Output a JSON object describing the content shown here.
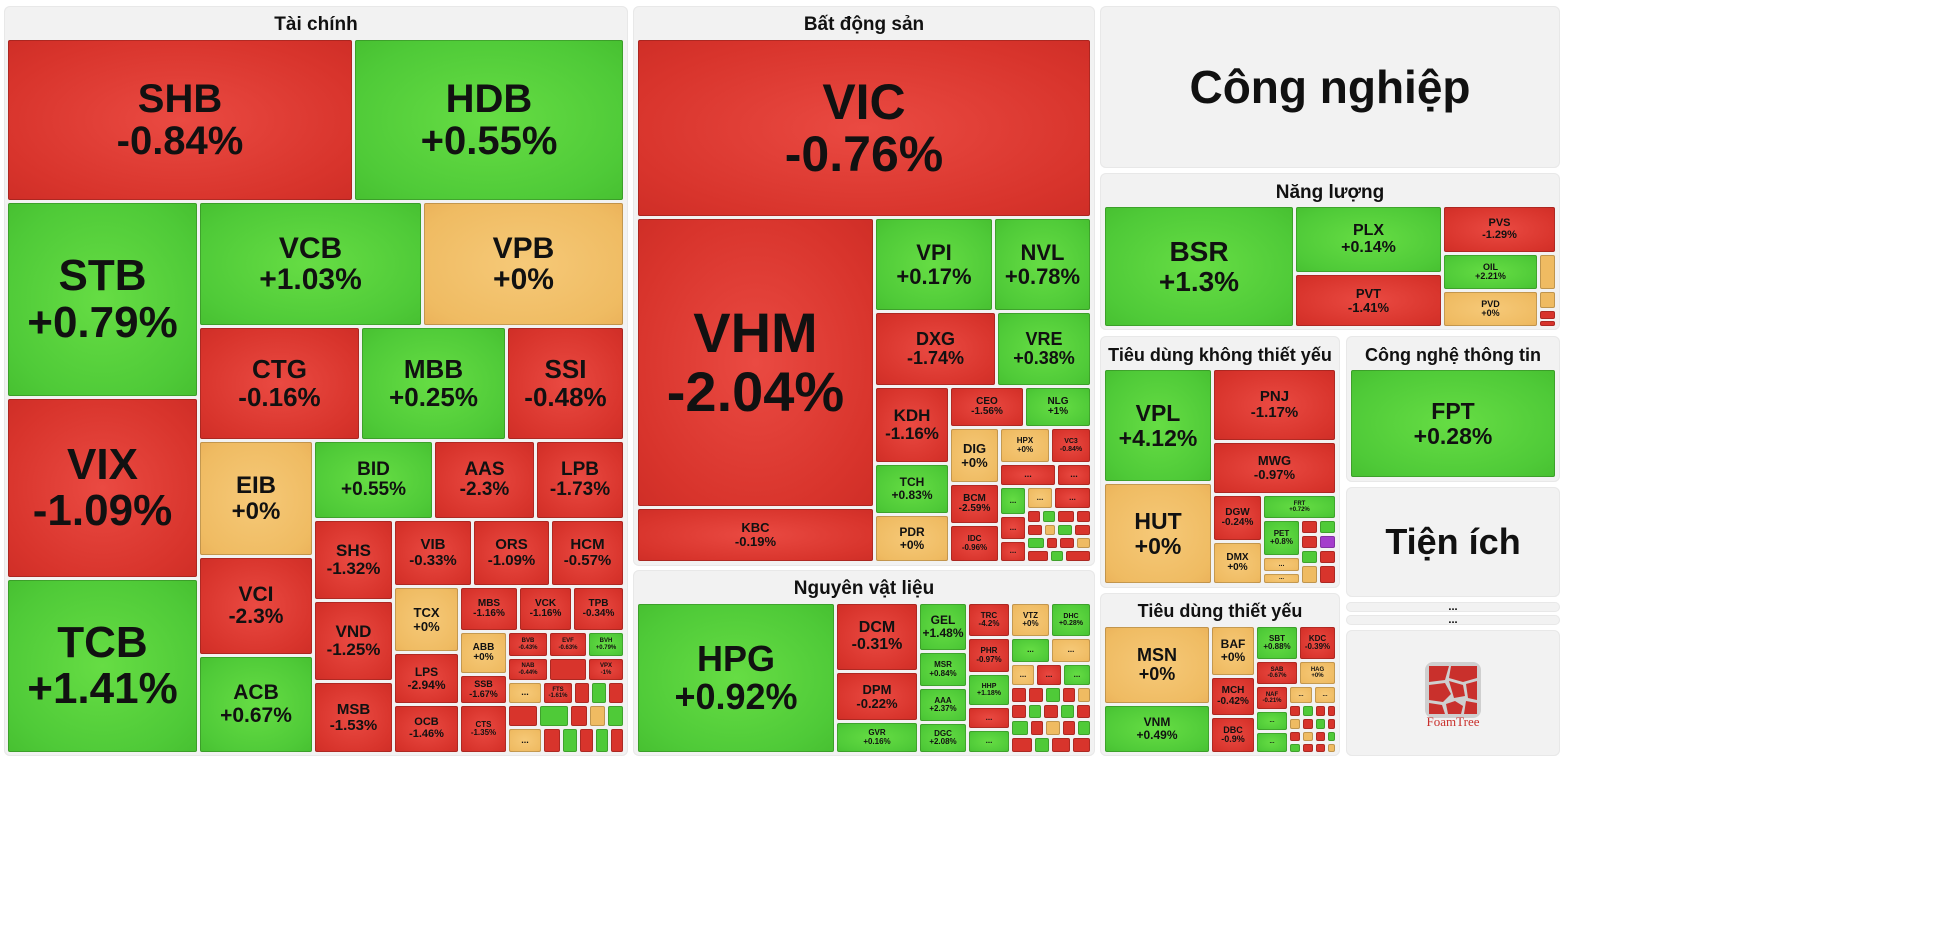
{
  "sectors": {
    "tai_chinh": "Tài chính",
    "bat_dong_san": "Bất động sản",
    "cong_nghiep": "Công nghiệp",
    "nang_luong": "Năng lượng",
    "tieu_dung_khong_thiet_yeu": "Tiêu dùng không thiết yếu",
    "cong_nghe_thong_tin": "Công nghệ thông tin",
    "nguyen_vat_lieu": "Nguyên vật liệu",
    "tieu_dung_thiet_yeu": "Tiêu dùng thiết yếu",
    "tien_ich": "Tiện ích"
  },
  "ellipsis": "...",
  "brand": "FoamTree",
  "colors": {
    "down": "#d8342c",
    "up": "#4fca38",
    "flat": "#efbb62"
  },
  "stocks": {
    "SHB": {
      "sym": "SHB",
      "chg": "-0.84%"
    },
    "HDB": {
      "sym": "HDB",
      "chg": "+0.55%"
    },
    "STB": {
      "sym": "STB",
      "chg": "+0.79%"
    },
    "VCB": {
      "sym": "VCB",
      "chg": "+1.03%"
    },
    "VPB": {
      "sym": "VPB",
      "chg": "+0%"
    },
    "CTG": {
      "sym": "CTG",
      "chg": "-0.16%"
    },
    "MBB": {
      "sym": "MBB",
      "chg": "+0.25%"
    },
    "SSI": {
      "sym": "SSI",
      "chg": "-0.48%"
    },
    "VIX": {
      "sym": "VIX",
      "chg": "-1.09%"
    },
    "EIB": {
      "sym": "EIB",
      "chg": "+0%"
    },
    "BID": {
      "sym": "BID",
      "chg": "+0.55%"
    },
    "AAS": {
      "sym": "AAS",
      "chg": "-2.3%"
    },
    "LPB": {
      "sym": "LPB",
      "chg": "-1.73%"
    },
    "SHS": {
      "sym": "SHS",
      "chg": "-1.32%"
    },
    "VIB": {
      "sym": "VIB",
      "chg": "-0.33%"
    },
    "ORS": {
      "sym": "ORS",
      "chg": "-1.09%"
    },
    "HCM": {
      "sym": "HCM",
      "chg": "-0.57%"
    },
    "VCI": {
      "sym": "VCI",
      "chg": "-2.3%"
    },
    "TCX": {
      "sym": "TCX",
      "chg": "+0%"
    },
    "MBS": {
      "sym": "MBS",
      "chg": "-1.16%"
    },
    "VCK": {
      "sym": "VCK",
      "chg": "-1.16%"
    },
    "TPB": {
      "sym": "TPB",
      "chg": "-0.34%"
    },
    "VND": {
      "sym": "VND",
      "chg": "-1.25%"
    },
    "ABB": {
      "sym": "ABB",
      "chg": "+0%"
    },
    "BVB": {
      "sym": "BVB",
      "chg": "-0.43%"
    },
    "EVF": {
      "sym": "EVF",
      "chg": "-0.63%"
    },
    "BVH": {
      "sym": "BVH",
      "chg": "+0.79%"
    },
    "TCB": {
      "sym": "TCB",
      "chg": "+1.41%"
    },
    "ACB": {
      "sym": "ACB",
      "chg": "+0.67%"
    },
    "LPS": {
      "sym": "LPS",
      "chg": "-2.94%"
    },
    "NAB": {
      "sym": "NAB",
      "chg": "-0.44%"
    },
    "VPX": {
      "sym": "VPX",
      "chg": "-1%"
    },
    "SSB": {
      "sym": "SSB",
      "chg": "-1.67%"
    },
    "FTS": {
      "sym": "FTS",
      "chg": "-1.61%"
    },
    "MSB": {
      "sym": "MSB",
      "chg": "-1.53%"
    },
    "OCB": {
      "sym": "OCB",
      "chg": "-1.46%"
    },
    "CTS": {
      "sym": "CTS",
      "chg": "-1.35%"
    },
    "VIC": {
      "sym": "VIC",
      "chg": "-0.76%"
    },
    "VHM": {
      "sym": "VHM",
      "chg": "-2.04%"
    },
    "VPI": {
      "sym": "VPI",
      "chg": "+0.17%"
    },
    "NVL": {
      "sym": "NVL",
      "chg": "+0.78%"
    },
    "DXG": {
      "sym": "DXG",
      "chg": "-1.74%"
    },
    "VRE": {
      "sym": "VRE",
      "chg": "+0.38%"
    },
    "KDH": {
      "sym": "KDH",
      "chg": "-1.16%"
    },
    "CEO": {
      "sym": "CEO",
      "chg": "-1.56%"
    },
    "NLG": {
      "sym": "NLG",
      "chg": "+1%"
    },
    "DIG": {
      "sym": "DIG",
      "chg": "+0%"
    },
    "HPX": {
      "sym": "HPX",
      "chg": "+0%"
    },
    "VC3": {
      "sym": "VC3",
      "chg": "-0.84%"
    },
    "TCH": {
      "sym": "TCH",
      "chg": "+0.83%"
    },
    "BCM": {
      "sym": "BCM",
      "chg": "-2.59%"
    },
    "KBC": {
      "sym": "KBC",
      "chg": "-0.19%"
    },
    "PDR": {
      "sym": "PDR",
      "chg": "+0%"
    },
    "IDC": {
      "sym": "IDC",
      "chg": "-0.96%"
    },
    "HPG": {
      "sym": "HPG",
      "chg": "+0.92%"
    },
    "DCM": {
      "sym": "DCM",
      "chg": "-0.31%"
    },
    "GEL": {
      "sym": "GEL",
      "chg": "+1.48%"
    },
    "TRC": {
      "sym": "TRC",
      "chg": "-4.2%"
    },
    "VTZ": {
      "sym": "VTZ",
      "chg": "+0%"
    },
    "DHC": {
      "sym": "DHC",
      "chg": "+0.28%"
    },
    "MSR": {
      "sym": "MSR",
      "chg": "+0.84%"
    },
    "PHR": {
      "sym": "PHR",
      "chg": "-0.97%"
    },
    "DPM": {
      "sym": "DPM",
      "chg": "-0.22%"
    },
    "AAA": {
      "sym": "AAA",
      "chg": "+2.37%"
    },
    "HHP": {
      "sym": "HHP",
      "chg": "+1.18%"
    },
    "GVR": {
      "sym": "GVR",
      "chg": "+0.16%"
    },
    "DGC": {
      "sym": "DGC",
      "chg": "+2.08%"
    },
    "BSR": {
      "sym": "BSR",
      "chg": "+1.3%"
    },
    "PLX": {
      "sym": "PLX",
      "chg": "+0.14%"
    },
    "PVS": {
      "sym": "PVS",
      "chg": "-1.29%"
    },
    "OIL": {
      "sym": "OIL",
      "chg": "+2.21%"
    },
    "PVT": {
      "sym": "PVT",
      "chg": "-1.41%"
    },
    "PVD": {
      "sym": "PVD",
      "chg": "+0%"
    },
    "VPL": {
      "sym": "VPL",
      "chg": "+4.12%"
    },
    "PNJ": {
      "sym": "PNJ",
      "chg": "-1.17%"
    },
    "MWG": {
      "sym": "MWG",
      "chg": "-0.97%"
    },
    "HUT": {
      "sym": "HUT",
      "chg": "+0%"
    },
    "DGW": {
      "sym": "DGW",
      "chg": "-0.24%"
    },
    "FRT": {
      "sym": "FRT",
      "chg": "+0.72%"
    },
    "PET": {
      "sym": "PET",
      "chg": "+0.8%"
    },
    "DMX": {
      "sym": "DMX",
      "chg": "+0%"
    },
    "FPT": {
      "sym": "FPT",
      "chg": "+0.28%"
    },
    "MSN": {
      "sym": "MSN",
      "chg": "+0%"
    },
    "BAF": {
      "sym": "BAF",
      "chg": "+0%"
    },
    "SBT": {
      "sym": "SBT",
      "chg": "+0.88%"
    },
    "KDC": {
      "sym": "KDC",
      "chg": "-0.39%"
    },
    "SAB": {
      "sym": "SAB",
      "chg": "-0.67%"
    },
    "HAG": {
      "sym": "HAG",
      "chg": "+0%"
    },
    "MCH": {
      "sym": "MCH",
      "chg": "-0.42%"
    },
    "NAF": {
      "sym": "NAF",
      "chg": "-0.21%"
    },
    "VNM": {
      "sym": "VNM",
      "chg": "+0.49%"
    },
    "DBC": {
      "sym": "DBC",
      "chg": "-0.9%"
    }
  }
}
